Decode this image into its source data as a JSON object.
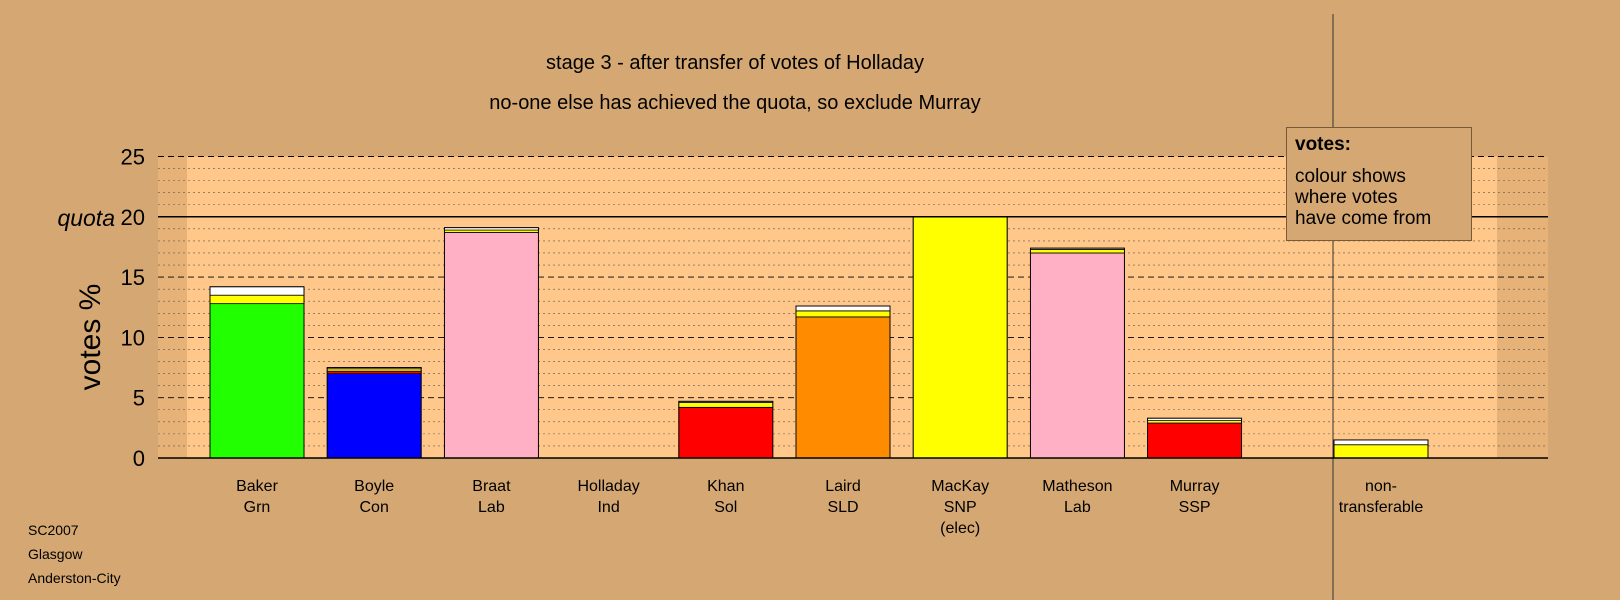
{
  "titles": {
    "line1": "stage 3 - after transfer of votes of Holladay",
    "line2": "no-one else has achieved the quota, so exclude Murray"
  },
  "footer": [
    "SC2007",
    "Glasgow",
    "Anderston-City"
  ],
  "legend": {
    "title": "votes:",
    "body": [
      "colour shows",
      "where votes",
      "have come from"
    ]
  },
  "chart_data": {
    "type": "bar",
    "stacked": true,
    "ylabel": "votes %",
    "ylim": [
      0,
      25
    ],
    "yticks": [
      0,
      5,
      10,
      15,
      20,
      25
    ],
    "quota": {
      "value": 20,
      "label": "quota"
    },
    "grid": "dashed major every 5, dotted minor every 1",
    "categories": [
      {
        "lines": [
          "Baker",
          "Grn"
        ],
        "segments": [
          {
            "value": 12.8,
            "color": "#22ff00"
          },
          {
            "value": 0.7,
            "color": "#ffff00"
          },
          {
            "value": 0.7,
            "color": "#ffffff"
          }
        ]
      },
      {
        "lines": [
          "Boyle",
          "Con"
        ],
        "segments": [
          {
            "value": 7.0,
            "color": "#0000ff"
          },
          {
            "value": 0.2,
            "color": "#ff0000"
          },
          {
            "value": 0.2,
            "color": "#ffff00"
          },
          {
            "value": 0.1,
            "color": "#ffffff"
          }
        ]
      },
      {
        "lines": [
          "Braat",
          "Lab"
        ],
        "segments": [
          {
            "value": 18.7,
            "color": "#ffb0c4"
          },
          {
            "value": 0.2,
            "color": "#ffff00"
          },
          {
            "value": 0.2,
            "color": "#ffffff"
          }
        ]
      },
      {
        "lines": [
          "Holladay",
          "Ind"
        ],
        "segments": []
      },
      {
        "lines": [
          "Khan",
          "Sol"
        ],
        "segments": [
          {
            "value": 4.2,
            "color": "#ff0000"
          },
          {
            "value": 0.4,
            "color": "#ffff00"
          },
          {
            "value": 0.1,
            "color": "#ffffff"
          }
        ]
      },
      {
        "lines": [
          "Laird",
          "SLD"
        ],
        "segments": [
          {
            "value": 11.7,
            "color": "#ff8c00"
          },
          {
            "value": 0.5,
            "color": "#ffff00"
          },
          {
            "value": 0.4,
            "color": "#ffffff"
          }
        ]
      },
      {
        "lines": [
          "MacKay",
          "SNP",
          "(elec)"
        ],
        "segments": [
          {
            "value": 20.0,
            "color": "#ffff00"
          }
        ]
      },
      {
        "lines": [
          "Matheson",
          "Lab"
        ],
        "segments": [
          {
            "value": 17.0,
            "color": "#ffb0c4"
          },
          {
            "value": 0.3,
            "color": "#ffff00"
          },
          {
            "value": 0.1,
            "color": "#ffffff"
          }
        ]
      },
      {
        "lines": [
          "Murray",
          "SSP"
        ],
        "segments": [
          {
            "value": 2.9,
            "color": "#ff0000"
          },
          {
            "value": 0.2,
            "color": "#ffff00"
          },
          {
            "value": 0.2,
            "color": "#ffffff"
          }
        ]
      },
      {
        "lines": [
          "non-",
          "transferable"
        ],
        "segments": [
          {
            "value": 1.1,
            "color": "#ffff00"
          },
          {
            "value": 0.4,
            "color": "#ffffff"
          }
        ]
      }
    ]
  }
}
